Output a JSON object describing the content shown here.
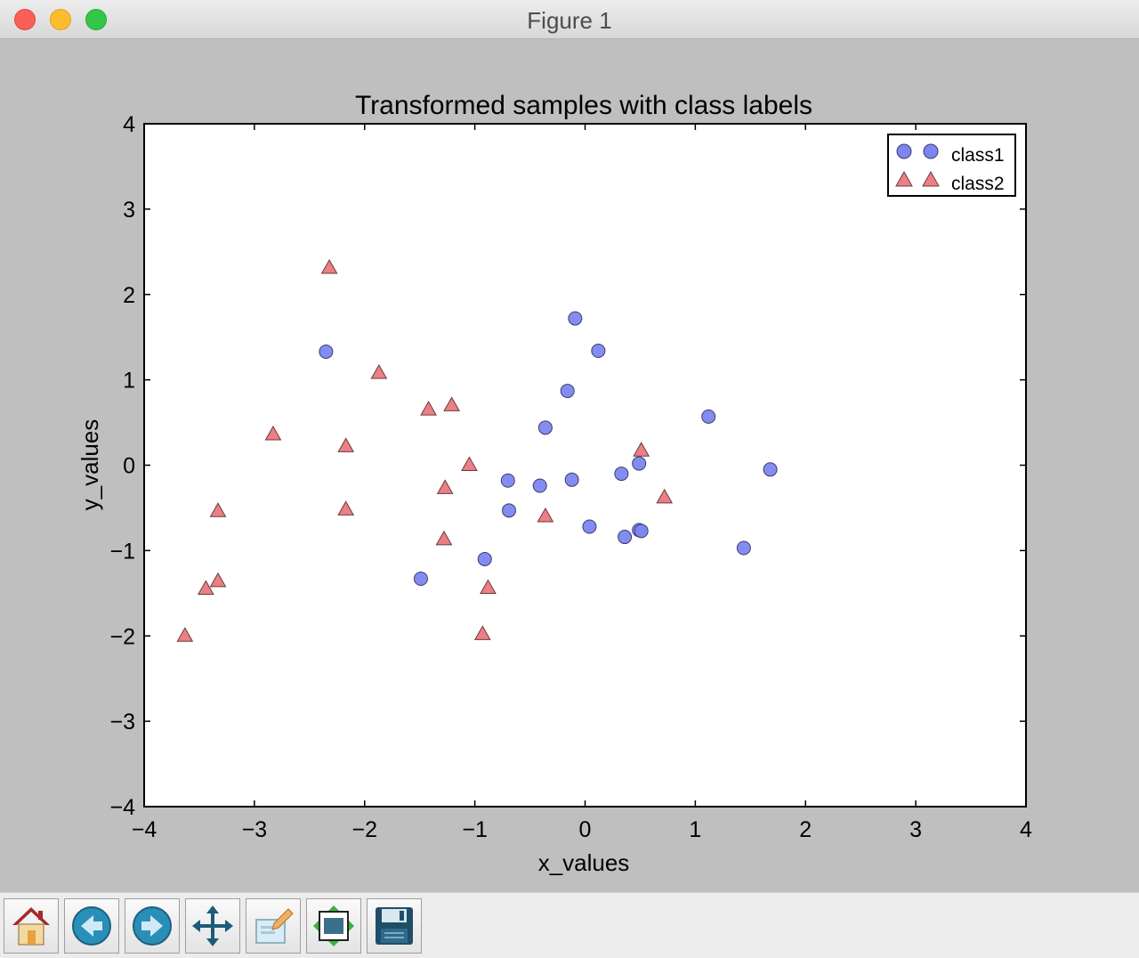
{
  "window": {
    "title": "Figure 1"
  },
  "toolbar": {
    "buttons": [
      {
        "name": "home-button",
        "icon": "home-icon"
      },
      {
        "name": "back-button",
        "icon": "back-arrow-icon"
      },
      {
        "name": "forward-button",
        "icon": "forward-arrow-icon"
      },
      {
        "name": "pan-button",
        "icon": "pan-arrows-icon"
      },
      {
        "name": "zoom-button",
        "icon": "zoom-rect-icon"
      },
      {
        "name": "subplots-button",
        "icon": "subplots-config-icon"
      },
      {
        "name": "save-button",
        "icon": "floppy-disk-icon"
      }
    ]
  },
  "colors": {
    "class1": "#7b86f0",
    "class2": "#ec7f86",
    "window_bg": "#bfbfbf"
  },
  "chart_data": {
    "type": "scatter",
    "title": "Transformed samples with class labels",
    "xlabel": "x_values",
    "ylabel": "y_values",
    "xlim": [
      -4,
      4
    ],
    "ylim": [
      -4,
      4
    ],
    "xticks": [
      -4,
      -3,
      -2,
      -1,
      0,
      1,
      2,
      3,
      4
    ],
    "yticks": [
      -4,
      -3,
      -2,
      -1,
      0,
      1,
      2,
      3,
      4
    ],
    "xtick_labels": [
      "−4",
      "−3",
      "−2",
      "−1",
      "0",
      "1",
      "2",
      "3",
      "4"
    ],
    "ytick_labels": [
      "−4",
      "−3",
      "−2",
      "−1",
      "0",
      "1",
      "2",
      "3",
      "4"
    ],
    "grid": false,
    "legend": "top-right",
    "series": [
      {
        "name": "class1",
        "marker": "circle",
        "color": "#7b86f0",
        "points": [
          [
            -2.35,
            1.33
          ],
          [
            -0.09,
            1.72
          ],
          [
            0.12,
            1.34
          ],
          [
            -0.16,
            0.87
          ],
          [
            -0.36,
            0.44
          ],
          [
            1.12,
            0.57
          ],
          [
            1.68,
            -0.05
          ],
          [
            0.49,
            0.02
          ],
          [
            0.33,
            -0.1
          ],
          [
            -0.12,
            -0.17
          ],
          [
            -0.7,
            -0.18
          ],
          [
            -0.41,
            -0.24
          ],
          [
            -0.69,
            -0.53
          ],
          [
            0.04,
            -0.72
          ],
          [
            0.36,
            -0.84
          ],
          [
            0.49,
            -0.76
          ],
          [
            0.51,
            -0.77
          ],
          [
            1.44,
            -0.97
          ],
          [
            -0.91,
            -1.1
          ],
          [
            -1.49,
            -1.33
          ]
        ]
      },
      {
        "name": "class2",
        "marker": "triangle",
        "color": "#ec7f86",
        "points": [
          [
            -2.32,
            2.31
          ],
          [
            -1.87,
            1.08
          ],
          [
            -1.42,
            0.65
          ],
          [
            -1.21,
            0.7
          ],
          [
            -2.83,
            0.36
          ],
          [
            -2.17,
            0.22
          ],
          [
            -1.05,
            0.0
          ],
          [
            0.51,
            0.17
          ],
          [
            -1.27,
            -0.27
          ],
          [
            0.72,
            -0.38
          ],
          [
            -2.17,
            -0.52
          ],
          [
            -3.33,
            -0.54
          ],
          [
            -0.36,
            -0.6
          ],
          [
            -1.28,
            -0.87
          ],
          [
            -3.33,
            -1.36
          ],
          [
            -3.44,
            -1.45
          ],
          [
            -0.88,
            -1.44
          ],
          [
            -3.63,
            -2.0
          ],
          [
            -0.93,
            -1.98
          ]
        ]
      }
    ]
  }
}
